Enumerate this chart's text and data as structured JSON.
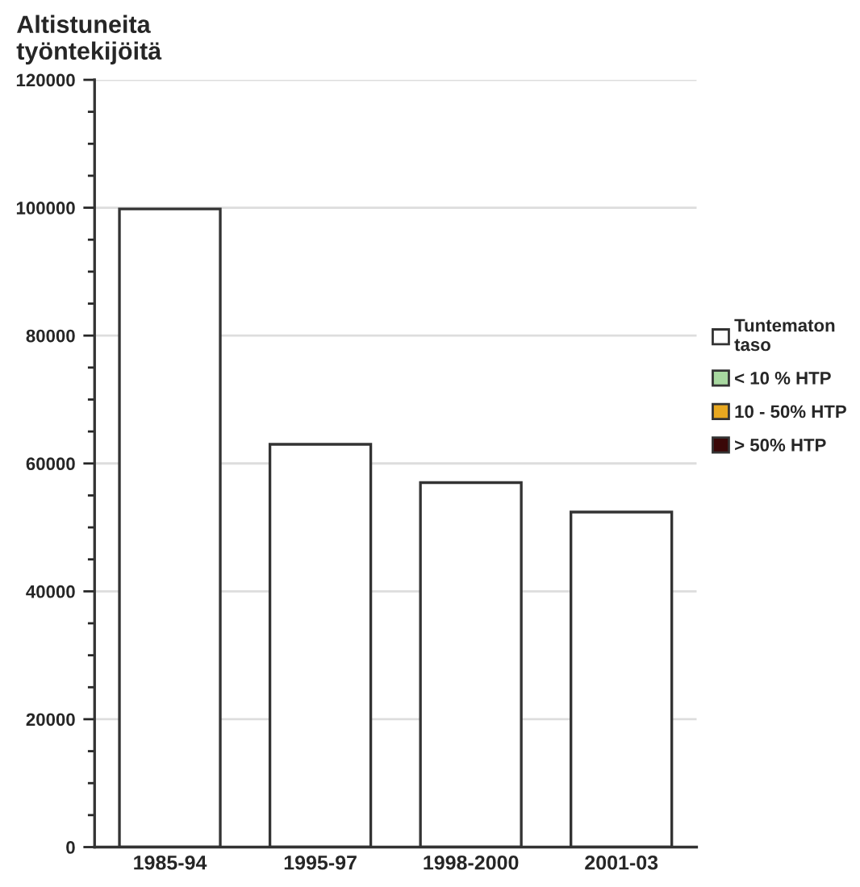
{
  "chart_data": {
    "type": "bar",
    "stacked": true,
    "ylabel": "Altistuneita\ntyöntekijöitä",
    "categories": [
      "1985-94",
      "1995-97",
      "1998-2000",
      "2001-03"
    ],
    "series": [
      {
        "name": "Tuntematon\ntaso",
        "color": "#ffffff",
        "values": [
          99800,
          63000,
          57000,
          52400
        ]
      },
      {
        "name": "< 10 % HTP",
        "color": "#a8d8a0",
        "values": [
          null,
          null,
          null,
          null
        ]
      },
      {
        "name": "10 - 50% HTP",
        "color": "#e8a820",
        "values": [
          null,
          null,
          null,
          null
        ]
      },
      {
        "name": "> 50% HTP",
        "color": "#3a0808",
        "values": [
          null,
          null,
          null,
          null
        ]
      }
    ],
    "ylim": [
      0,
      120000
    ],
    "yticks": [
      0,
      20000,
      40000,
      60000,
      80000,
      100000,
      120000
    ],
    "grid": "y",
    "legend": "right"
  }
}
